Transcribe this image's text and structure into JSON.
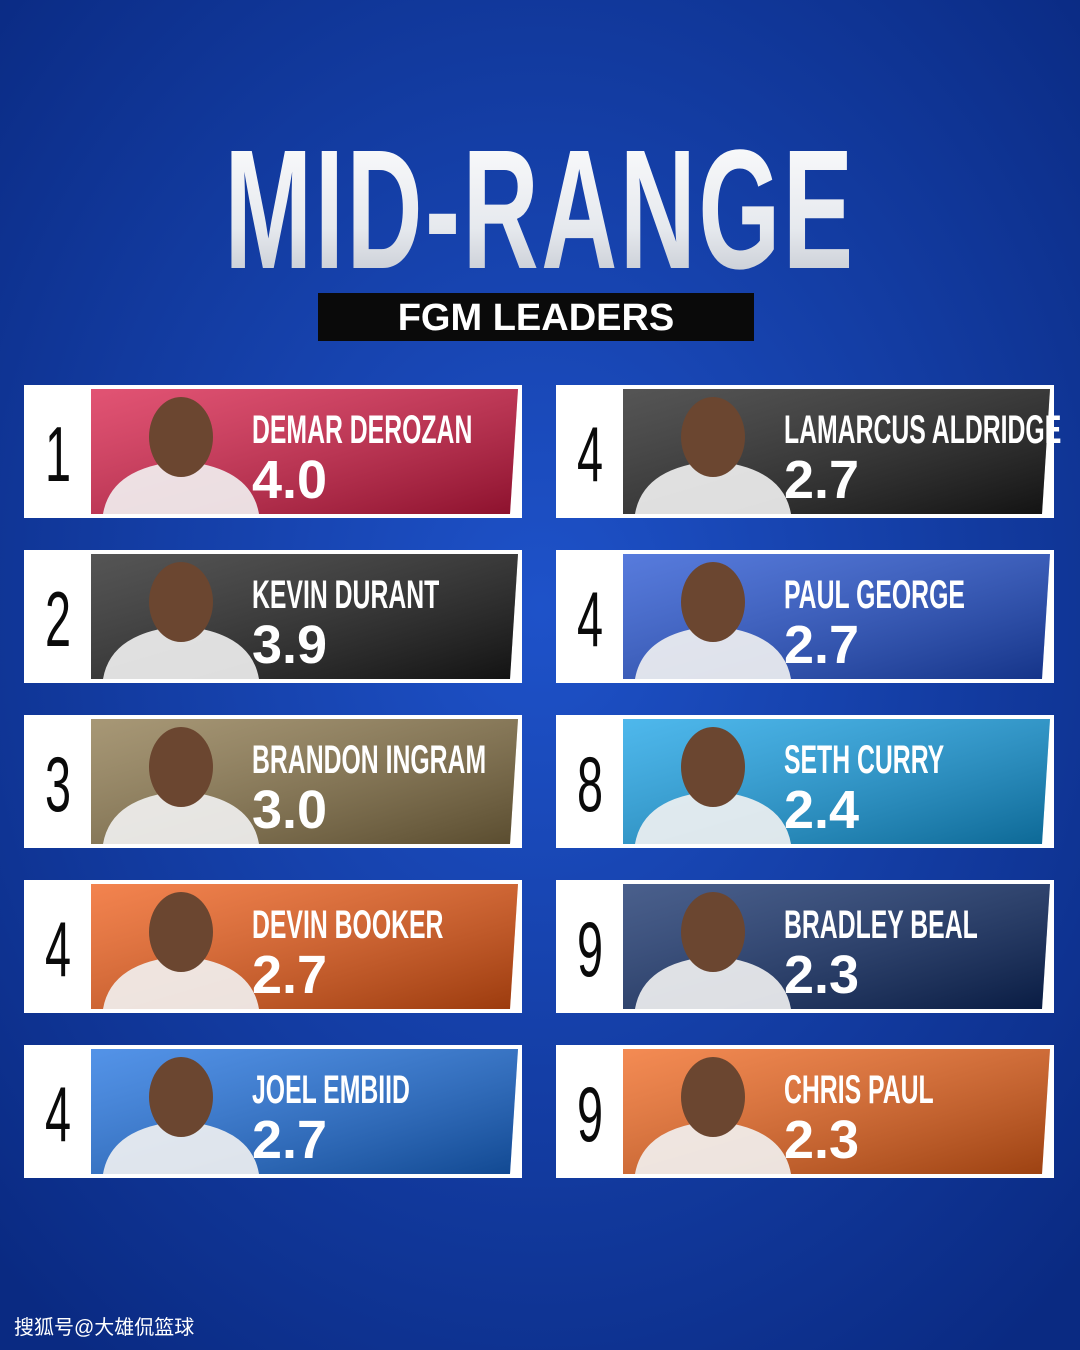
{
  "header": {
    "title": "MID-RANGE",
    "subtitle": "FGM LEADERS"
  },
  "players": [
    {
      "rank": 1,
      "name": "DEMAR DEROZAN",
      "value": "4.0",
      "color": "#d81a45"
    },
    {
      "rank": 2,
      "name": "KEVIN DURANT",
      "value": "3.9",
      "color": "#1c1c1c"
    },
    {
      "rank": 3,
      "name": "BRANDON INGRAM",
      "value": "3.0",
      "color": "#8a7548"
    },
    {
      "rank": 4,
      "name": "DEVIN BOOKER",
      "value": "2.7",
      "color": "#ef5a14"
    },
    {
      "rank": 4,
      "name": "JOEL EMBIID",
      "value": "2.7",
      "color": "#1a6fe0"
    },
    {
      "rank": 4,
      "name": "LAMARCUS ALDRIDGE",
      "value": "2.7",
      "color": "#1c1c1c"
    },
    {
      "rank": 4,
      "name": "PAUL GEORGE",
      "value": "2.7",
      "color": "#1f4fd1"
    },
    {
      "rank": 8,
      "name": "SETH CURRY",
      "value": "2.4",
      "color": "#13a0e6"
    },
    {
      "rank": 9,
      "name": "BRADLEY BEAL",
      "value": "2.3",
      "color": "#0d2a66"
    },
    {
      "rank": 9,
      "name": "CHRIS PAUL",
      "value": "2.3",
      "color": "#f0641a"
    }
  ],
  "watermark": "搜狐号@大雄侃篮球"
}
